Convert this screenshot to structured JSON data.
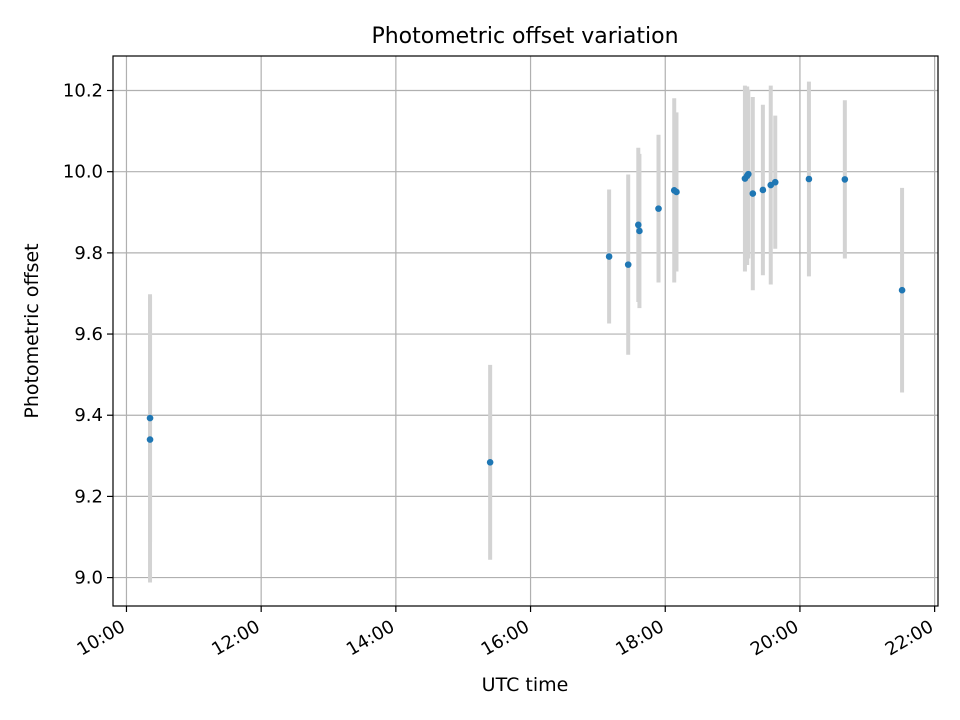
{
  "chart_data": {
    "type": "scatter",
    "title": "Photometric offset variation",
    "xlabel": "UTC time",
    "ylabel": "Photometric offset",
    "x_ticks": [
      "10:00",
      "12:00",
      "14:00",
      "16:00",
      "18:00",
      "20:00",
      "22:00"
    ],
    "y_ticks": [
      "9.0",
      "9.2",
      "9.4",
      "9.6",
      "9.8",
      "10.0",
      "10.2"
    ],
    "xlim": [
      "09:48",
      "22:03"
    ],
    "ylim": [
      8.93,
      10.285
    ],
    "grid": true,
    "colors": {
      "point": "#1f77b4",
      "errorbar": "#d3d3d3",
      "grid": "#b0b0b0"
    },
    "series": [
      {
        "points": [
          {
            "x": "10:21",
            "y": 9.393,
            "err": 0.305
          },
          {
            "x": "10:21",
            "y": 9.34,
            "err": 0.352
          },
          {
            "x": "15:24",
            "y": 9.284,
            "err": 0.24
          },
          {
            "x": "17:10",
            "y": 9.791,
            "err": 0.165
          },
          {
            "x": "17:27",
            "y": 9.771,
            "err": 0.222
          },
          {
            "x": "17:36",
            "y": 9.869,
            "err": 0.19
          },
          {
            "x": "17:37",
            "y": 9.854,
            "err": 0.19
          },
          {
            "x": "17:54",
            "y": 9.909,
            "err": 0.182
          },
          {
            "x": "18:08",
            "y": 9.954,
            "err": 0.227
          },
          {
            "x": "18:10",
            "y": 9.95,
            "err": 0.196
          },
          {
            "x": "19:11",
            "y": 9.983,
            "err": 0.229
          },
          {
            "x": "19:13",
            "y": 9.99,
            "err": 0.22
          },
          {
            "x": "19:14",
            "y": 9.994,
            "err": 0.208
          },
          {
            "x": "19:18",
            "y": 9.946,
            "err": 0.238
          },
          {
            "x": "19:27",
            "y": 9.955,
            "err": 0.21
          },
          {
            "x": "19:34",
            "y": 9.967,
            "err": 0.245
          },
          {
            "x": "19:38",
            "y": 9.974,
            "err": 0.164
          },
          {
            "x": "20:08",
            "y": 9.982,
            "err": 0.24
          },
          {
            "x": "20:40",
            "y": 9.981,
            "err": 0.195
          },
          {
            "x": "21:31",
            "y": 9.708,
            "err": 0.252
          }
        ]
      }
    ]
  }
}
